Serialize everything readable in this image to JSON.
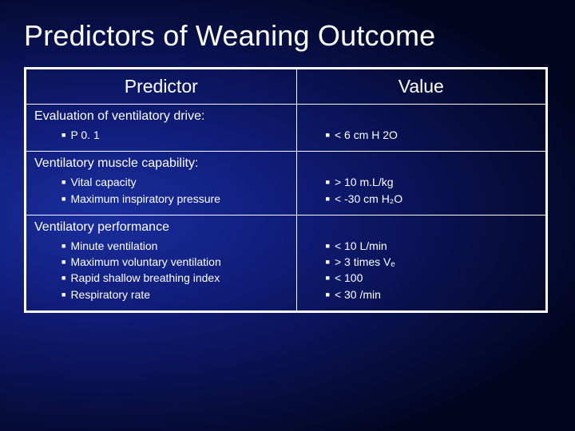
{
  "slide": {
    "title": "Predictors of Weaning Outcome",
    "background_gradient": {
      "inner": "#1a2e9e",
      "mid": "#101d7a",
      "outer": "#030620"
    },
    "border_color": "#ffffff",
    "text_color": "#ffffff",
    "title_fontsize": 36,
    "header_fontsize": 23,
    "section_fontsize": 16,
    "item_fontsize": 14
  },
  "table": {
    "columns": [
      "Predictor",
      "Value"
    ],
    "sections": [
      {
        "heading": "Evaluation of ventilatory drive:",
        "predictors": [
          "P 0. 1"
        ],
        "values": [
          "< 6 cm H 2O"
        ]
      },
      {
        "heading": "Ventilatory muscle capability:",
        "predictors": [
          "Vital capacity",
          "Maximum inspiratory pressure"
        ],
        "values": [
          "> 10 m.L/kg",
          "< -30 cm H₂O"
        ]
      },
      {
        "heading": "Ventilatory performance",
        "predictors": [
          "Minute ventilation",
          "Maximum voluntary ventilation",
          "Rapid shallow breathing index",
          "Respiratory rate"
        ],
        "values": [
          "< 10 L/min",
          "> 3 times Vₑ",
          "< 100",
          "< 30 /min"
        ]
      }
    ]
  }
}
